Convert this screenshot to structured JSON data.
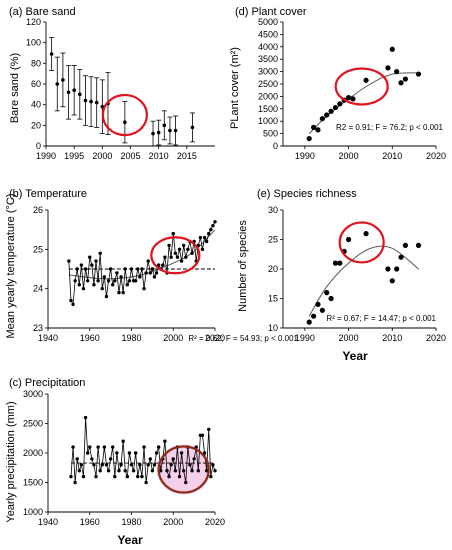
{
  "chart_data": [
    {
      "id": "bare-sand",
      "type": "scatter",
      "title": "(a) Bare sand",
      "xlabel": "",
      "ylabel": "Bare sand (%)",
      "xlim": [
        1990,
        2020
      ],
      "ylim": [
        0,
        120
      ],
      "xticks": [
        1990,
        1995,
        2000,
        2005,
        2010,
        2015
      ],
      "yticks": [
        0,
        20,
        40,
        60,
        80,
        100,
        120
      ],
      "points": [
        {
          "x": 1991,
          "y": 89,
          "err": 16
        },
        {
          "x": 1992,
          "y": 60,
          "err": 26
        },
        {
          "x": 1993,
          "y": 64,
          "err": 26
        },
        {
          "x": 1994,
          "y": 52,
          "err": 26
        },
        {
          "x": 1995,
          "y": 54,
          "err": 24
        },
        {
          "x": 1996,
          "y": 50,
          "err": 24
        },
        {
          "x": 1997,
          "y": 44,
          "err": 24
        },
        {
          "x": 1998,
          "y": 43,
          "err": 24
        },
        {
          "x": 1999,
          "y": 42,
          "err": 24
        },
        {
          "x": 2000,
          "y": 38,
          "err": 26
        },
        {
          "x": 2001,
          "y": 41,
          "err": 30
        },
        {
          "x": 2004,
          "y": 23,
          "err": 20
        },
        {
          "x": 2009,
          "y": 12,
          "err": 12
        },
        {
          "x": 2010,
          "y": 13,
          "err": 12
        },
        {
          "x": 2011,
          "y": 20,
          "err": 14
        },
        {
          "x": 2012,
          "y": 15,
          "err": 13
        },
        {
          "x": 2013,
          "y": 15,
          "err": 14
        },
        {
          "x": 2016,
          "y": 18,
          "err": 14
        }
      ],
      "highlight": {
        "x": 2004,
        "y": 30
      }
    },
    {
      "id": "temperature",
      "type": "line",
      "title": "(b) Temperature",
      "xlabel": "",
      "ylabel": "Mean yearly temperature (°C)",
      "xlim": [
        1940,
        2020
      ],
      "ylim": [
        23,
        26
      ],
      "xticks": [
        1940,
        1960,
        1980,
        2000,
        2020
      ],
      "yticks": [
        23,
        24,
        25,
        26
      ],
      "x": [
        1950,
        1951,
        1952,
        1953,
        1954,
        1955,
        1956,
        1957,
        1958,
        1959,
        1960,
        1961,
        1962,
        1963,
        1964,
        1965,
        1966,
        1967,
        1968,
        1969,
        1970,
        1971,
        1972,
        1973,
        1974,
        1975,
        1976,
        1977,
        1978,
        1979,
        1980,
        1981,
        1982,
        1983,
        1984,
        1985,
        1986,
        1987,
        1988,
        1989,
        1990,
        1991,
        1992,
        1993,
        1994,
        1995,
        1996,
        1997,
        1998,
        1999,
        2000,
        2001,
        2002,
        2003,
        2004,
        2005,
        2006,
        2007,
        2008,
        2009,
        2010,
        2011,
        2012,
        2013,
        2014,
        2015,
        2016,
        2017,
        2018,
        2019,
        2020
      ],
      "y": [
        24.7,
        23.7,
        23.6,
        24.2,
        24.5,
        24.1,
        24.6,
        24.0,
        24.5,
        24.2,
        24.8,
        24.6,
        24.1,
        24.7,
        24.2,
        24.9,
        24.0,
        24.3,
        23.8,
        24.2,
        24.5,
        24.1,
        24.2,
        24.4,
        23.9,
        24.3,
        23.9,
        24.5,
        24.1,
        24.2,
        24.5,
        24.2,
        24.2,
        24.5,
        24.3,
        24.5,
        24.0,
        24.4,
        24.7,
        24.4,
        24.5,
        24.3,
        24.4,
        24.6,
        24.5,
        24.6,
        24.8,
        24.4,
        25.1,
        24.8,
        25.4,
        24.9,
        24.8,
        25.0,
        24.7,
        25.1,
        24.8,
        25.0,
        25.2,
        24.9,
        25.2,
        24.7,
        25.1,
        25.3,
        25.0,
        25.3,
        25.2,
        25.4,
        25.5,
        25.6,
        25.7
      ],
      "mean_line": 24.5,
      "trend": [
        {
          "x": 1950,
          "y": 24.35
        },
        {
          "x": 1968,
          "y": 24.25
        },
        {
          "x": 1985,
          "y": 24.35
        },
        {
          "x": 2000,
          "y": 24.65
        },
        {
          "x": 2010,
          "y": 24.95
        },
        {
          "x": 2020,
          "y": 25.5
        }
      ],
      "annotation": "R² = 0.62; F = 54.93; p < 0.001",
      "highlight": {
        "x": 2001,
        "y": 24.85
      }
    },
    {
      "id": "precipitation",
      "type": "line",
      "title": "(c) Precipitation",
      "xlabel": "Year",
      "ylabel": "Yearly precipitation (mm)",
      "xlim": [
        1940,
        2020
      ],
      "ylim": [
        1000,
        3000
      ],
      "xticks": [
        1940,
        1960,
        1980,
        2000,
        2020
      ],
      "yticks": [
        1000,
        1500,
        2000,
        2500,
        3000
      ],
      "x": [
        1951,
        1952,
        1953,
        1954,
        1955,
        1956,
        1957,
        1958,
        1959,
        1960,
        1961,
        1962,
        1963,
        1964,
        1965,
        1966,
        1967,
        1968,
        1969,
        1970,
        1971,
        1972,
        1973,
        1974,
        1975,
        1976,
        1977,
        1978,
        1979,
        1980,
        1981,
        1982,
        1983,
        1984,
        1985,
        1986,
        1987,
        1988,
        1989,
        1990,
        1991,
        1992,
        1993,
        1994,
        1995,
        1996,
        1997,
        1998,
        1999,
        2000,
        2001,
        2002,
        2003,
        2004,
        2005,
        2006,
        2007,
        2008,
        2009,
        2010,
        2011,
        2012,
        2013,
        2014,
        2015,
        2016,
        2017,
        2018,
        2019,
        2020
      ],
      "y": [
        1600,
        2100,
        1500,
        1900,
        1700,
        1800,
        1600,
        2600,
        2000,
        2100,
        1900,
        1800,
        1600,
        2100,
        1700,
        1800,
        2100,
        1800,
        1700,
        1900,
        2100,
        1600,
        2000,
        1700,
        1800,
        2200,
        1700,
        1600,
        2000,
        1800,
        1700,
        2000,
        1600,
        1800,
        1600,
        2100,
        1500,
        1800,
        1900,
        1700,
        1800,
        2000,
        2100,
        1700,
        1900,
        2200,
        1700,
        1600,
        1800,
        1900,
        1700,
        2100,
        1600,
        2000,
        1700,
        1500,
        2100,
        1800,
        1700,
        1900,
        2100,
        1700,
        2300,
        2300,
        2000,
        1700,
        2400,
        1600,
        1800,
        1700
      ],
      "mean_line": 1830,
      "highlight": {
        "x": 2005,
        "y": 1720
      }
    },
    {
      "id": "plant-cover",
      "type": "scatter",
      "title": "(d) Plant cover",
      "xlabel": "",
      "ylabel": "PLant cover (m²)",
      "xlim": [
        1985,
        2020
      ],
      "ylim": [
        0,
        5000
      ],
      "xticks": [
        1990,
        2000,
        2010,
        2020
      ],
      "yticks": [
        0,
        500,
        1000,
        1500,
        2000,
        2500,
        3000,
        3500,
        4000,
        4500,
        5000
      ],
      "points": [
        {
          "x": 1991,
          "y": 300
        },
        {
          "x": 1992,
          "y": 750
        },
        {
          "x": 1993,
          "y": 650
        },
        {
          "x": 1994,
          "y": 1100
        },
        {
          "x": 1995,
          "y": 1250
        },
        {
          "x": 1996,
          "y": 1400
        },
        {
          "x": 1997,
          "y": 1550
        },
        {
          "x": 1998,
          "y": 1700
        },
        {
          "x": 1999,
          "y": 1850
        },
        {
          "x": 2000,
          "y": 1950
        },
        {
          "x": 2001,
          "y": 1900
        },
        {
          "x": 2004,
          "y": 2650
        },
        {
          "x": 2009,
          "y": 3150
        },
        {
          "x": 2010,
          "y": 3900
        },
        {
          "x": 2011,
          "y": 3000
        },
        {
          "x": 2012,
          "y": 2550
        },
        {
          "x": 2013,
          "y": 2700
        },
        {
          "x": 2016,
          "y": 2900
        }
      ],
      "trend": [
        {
          "x": 1991,
          "y": 500
        },
        {
          "x": 1995,
          "y": 1200
        },
        {
          "x": 2000,
          "y": 1900
        },
        {
          "x": 2005,
          "y": 2500
        },
        {
          "x": 2010,
          "y": 2900
        },
        {
          "x": 2016,
          "y": 2950
        }
      ],
      "annotation": "R2 = 0.91; F = 76.2; p < 0.001",
      "highlight": {
        "x": 2003,
        "y": 2400
      }
    },
    {
      "id": "species-richness",
      "type": "scatter",
      "title": "(e) Species richness",
      "xlabel": "Year",
      "ylabel": "Number of species",
      "xlim": [
        1985,
        2020
      ],
      "ylim": [
        10,
        30
      ],
      "xticks": [
        1990,
        2000,
        2010,
        2020
      ],
      "yticks": [
        10,
        15,
        20,
        25,
        30
      ],
      "points": [
        {
          "x": 1991,
          "y": 11
        },
        {
          "x": 1992,
          "y": 12
        },
        {
          "x": 1993,
          "y": 14
        },
        {
          "x": 1994,
          "y": 13
        },
        {
          "x": 1995,
          "y": 16
        },
        {
          "x": 1996,
          "y": 15
        },
        {
          "x": 1997,
          "y": 21
        },
        {
          "x": 1998,
          "y": 21
        },
        {
          "x": 1999,
          "y": 23
        },
        {
          "x": 2000,
          "y": 25
        },
        {
          "x": 2004,
          "y": 26
        },
        {
          "x": 2009,
          "y": 20
        },
        {
          "x": 2010,
          "y": 18
        },
        {
          "x": 2011,
          "y": 20
        },
        {
          "x": 2012,
          "y": 22
        },
        {
          "x": 2013,
          "y": 24
        },
        {
          "x": 2016,
          "y": 24
        }
      ],
      "trend": [
        {
          "x": 1991,
          "y": 12
        },
        {
          "x": 1995,
          "y": 17
        },
        {
          "x": 2000,
          "y": 21
        },
        {
          "x": 2005,
          "y": 23.5
        },
        {
          "x": 2010,
          "y": 23.5
        },
        {
          "x": 2016,
          "y": 20
        }
      ],
      "annotation": "R² = 0.67; F = 14.47; p < 0.001",
      "highlight": {
        "x": 2003,
        "y": 24.5
      }
    }
  ],
  "colors": {
    "highlight_red": "#e0141e",
    "highlight_brown": "#8b2b14",
    "highlight_glow": "#f2c8e6",
    "marker": "#000000",
    "trend_line": "#555555"
  }
}
